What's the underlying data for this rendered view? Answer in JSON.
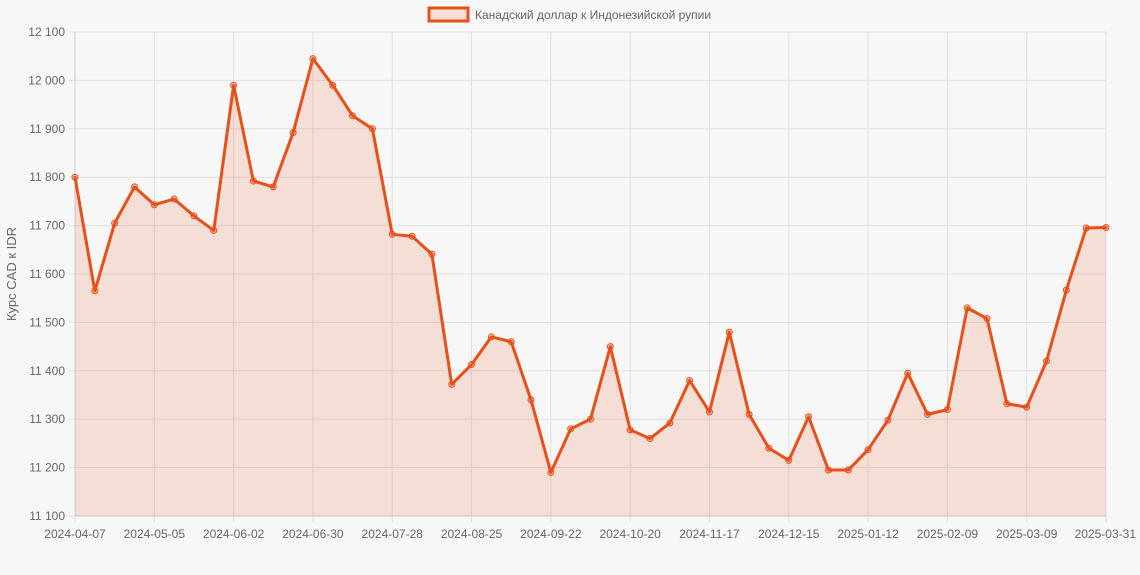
{
  "chart_data": {
    "type": "area",
    "legend": {
      "label": "Канадский доллар к Индонезийской рупии",
      "position": "top-center"
    },
    "ylabel": "Курс CAD к IDR",
    "xlabel": "",
    "ylim": [
      11100,
      12100
    ],
    "y_ticks": [
      11100,
      11200,
      11300,
      11400,
      11500,
      11600,
      11700,
      11800,
      11900,
      12000,
      12100
    ],
    "y_tick_labels": [
      "11 100",
      "11 200",
      "11 300",
      "11 400",
      "11 500",
      "11 600",
      "11 700",
      "11 800",
      "11 900",
      "12 000",
      "12 100"
    ],
    "x_tick_labels": [
      "2024-04-07",
      "2024-05-05",
      "2024-06-02",
      "2024-06-30",
      "2024-07-28",
      "2024-08-25",
      "2024-09-22",
      "2024-10-20",
      "2024-11-17",
      "2024-12-15",
      "2025-01-12",
      "2025-02-09",
      "2025-03-09",
      "2025-03-31"
    ],
    "grid": true,
    "colors": {
      "line": "#e8501a",
      "fill": "rgba(232, 80, 26, 0.15)",
      "grid": "#e0e0e0",
      "axis": "#cccccc"
    },
    "x": [
      "2024-04-07",
      "2024-04-14",
      "2024-04-21",
      "2024-04-28",
      "2024-05-05",
      "2024-05-12",
      "2024-05-19",
      "2024-05-26",
      "2024-06-02",
      "2024-06-09",
      "2024-06-16",
      "2024-06-23",
      "2024-06-30",
      "2024-07-07",
      "2024-07-14",
      "2024-07-21",
      "2024-07-28",
      "2024-08-04",
      "2024-08-11",
      "2024-08-18",
      "2024-08-25",
      "2024-09-01",
      "2024-09-08",
      "2024-09-15",
      "2024-09-22",
      "2024-09-29",
      "2024-10-06",
      "2024-10-13",
      "2024-10-20",
      "2024-10-27",
      "2024-11-03",
      "2024-11-10",
      "2024-11-17",
      "2024-11-24",
      "2024-12-01",
      "2024-12-08",
      "2024-12-15",
      "2024-12-22",
      "2024-12-29",
      "2025-01-05",
      "2025-01-12",
      "2025-01-19",
      "2025-01-26",
      "2025-02-02",
      "2025-02-09",
      "2025-02-16",
      "2025-02-23",
      "2025-03-02",
      "2025-03-09",
      "2025-03-16",
      "2025-03-23",
      "2025-03-30",
      "2025-03-31"
    ],
    "series": [
      {
        "values": [
          11800,
          11565,
          11705,
          11780,
          11743,
          11755,
          11720,
          11690,
          11990,
          11792,
          11780,
          11892,
          12045,
          11990,
          11927,
          11900,
          11682,
          11678,
          11641,
          11372,
          11413,
          11470,
          11460,
          11340,
          11190,
          11280,
          11300,
          11450,
          11278,
          11260,
          11292,
          11380,
          11315,
          11480,
          11310,
          11240,
          11215,
          11305,
          11195,
          11195,
          11237,
          11298,
          11395,
          11310,
          11320,
          11530,
          11508,
          11332,
          11325,
          11420,
          11567,
          11695,
          11696
        ]
      }
    ]
  }
}
